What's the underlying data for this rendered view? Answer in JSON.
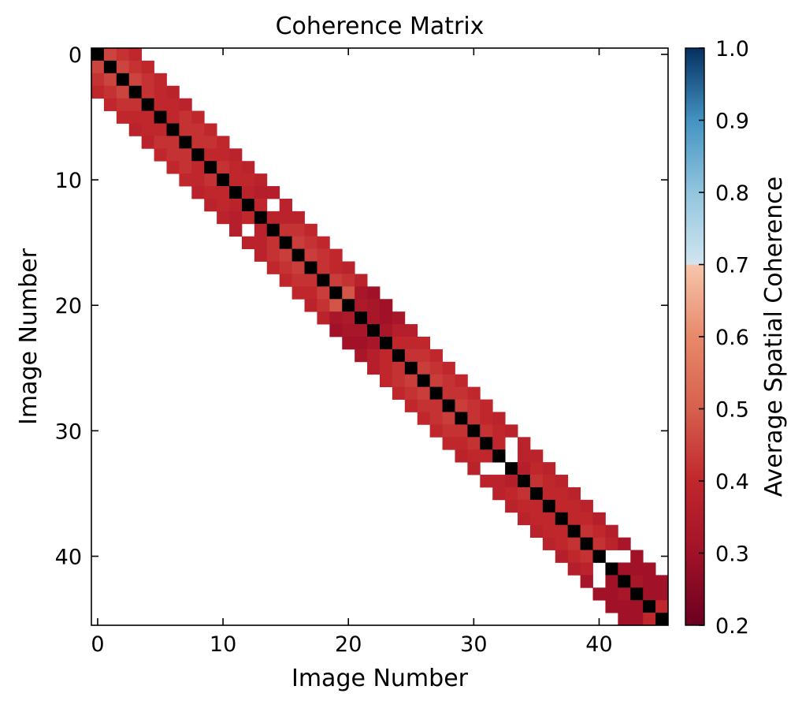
{
  "chart_data": {
    "type": "heatmap",
    "title": "Coherence Matrix",
    "xlabel": "Image Number",
    "ylabel": "Image Number",
    "n": 46,
    "bandwidth": 3,
    "xticks": [
      0,
      10,
      20,
      30,
      40
    ],
    "yticks": [
      0,
      10,
      20,
      30,
      40
    ],
    "xlim": [
      -0.5,
      45.5
    ],
    "ylim": [
      45.5,
      -0.5
    ],
    "diagonal_value": 1.0,
    "diagonal_color": "#000000",
    "masked_pairs": [
      [
        12,
        14
      ],
      [
        31,
        33
      ],
      [
        40,
        42
      ],
      [
        32,
        33
      ],
      [
        40,
        41
      ]
    ],
    "band_values": {
      "offset1": [
        0.45,
        0.45,
        0.45,
        0.42,
        0.4,
        0.4,
        0.42,
        0.42,
        0.4,
        0.42,
        0.4,
        0.38,
        0.4,
        0.38,
        0.42,
        0.44,
        0.44,
        0.42,
        0.44,
        0.48,
        0.34,
        0.32,
        0.32,
        0.4,
        0.42,
        0.44,
        0.44,
        0.42,
        0.44,
        0.42,
        0.42,
        0.4,
        0.4,
        0.36,
        0.42,
        0.4,
        0.4,
        0.4,
        0.42,
        0.42,
        0.42,
        0.3,
        0.32,
        0.3,
        0.4
      ],
      "offset2": [
        0.42,
        0.42,
        0.42,
        0.4,
        0.4,
        0.42,
        0.42,
        0.42,
        0.4,
        0.4,
        0.4,
        0.36,
        0.4,
        0.38,
        0.42,
        0.42,
        0.42,
        0.4,
        0.42,
        0.32,
        0.32,
        0.3,
        0.36,
        0.4,
        0.42,
        0.42,
        0.42,
        0.42,
        0.42,
        0.4,
        0.4,
        0.38,
        0.38,
        0.4,
        0.4,
        0.4,
        0.4,
        0.4,
        0.4,
        0.38,
        0.3,
        0.3,
        0.3,
        0.3
      ],
      "offset3": [
        0.4,
        0.4,
        0.4,
        0.38,
        0.38,
        0.4,
        0.4,
        0.4,
        0.38,
        0.38,
        0.38,
        0.36,
        0.38,
        0.38,
        0.4,
        0.4,
        0.4,
        0.38,
        0.38,
        0.3,
        0.3,
        0.32,
        0.36,
        0.4,
        0.4,
        0.4,
        0.4,
        0.4,
        0.4,
        0.38,
        0.38,
        0.38,
        0.38,
        0.38,
        0.38,
        0.38,
        0.38,
        0.36,
        0.36,
        0.32,
        0.3,
        0.3,
        0.3
      ]
    },
    "colorbar": {
      "label": "Average Spatial Coherence",
      "vmin": 0.2,
      "vmax": 1.0,
      "ticks": [
        0.2,
        0.3,
        0.4,
        0.5,
        0.6,
        0.7,
        0.8,
        0.9,
        1.0
      ],
      "tick_labels": [
        "0.2",
        "0.3",
        "0.4",
        "0.5",
        "0.6",
        "0.7",
        "0.8",
        "0.9",
        "1.0"
      ],
      "stops": [
        {
          "v": 0.2,
          "color": "#6a0020"
        },
        {
          "v": 0.3,
          "color": "#a11228"
        },
        {
          "v": 0.4,
          "color": "#c0272d"
        },
        {
          "v": 0.5,
          "color": "#d6604d"
        },
        {
          "v": 0.6,
          "color": "#e8896b"
        },
        {
          "v": 0.7,
          "color": "#f6c6ac"
        },
        {
          "v": 0.7001,
          "color": "#d1e5f0"
        },
        {
          "v": 0.8,
          "color": "#92c5de"
        },
        {
          "v": 0.9,
          "color": "#4393c3"
        },
        {
          "v": 1.0,
          "color": "#053061"
        }
      ]
    }
  }
}
